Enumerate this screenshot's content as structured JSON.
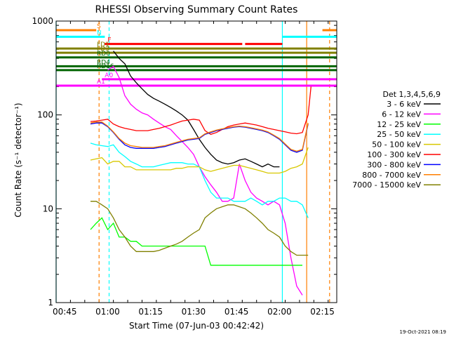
{
  "chart_data": {
    "type": "line",
    "title": "RHESSI Observing Summary Count Rates",
    "xlabel": "Start Time (07-Jun-03 00:42:42)",
    "ylabel": "Count Rate (s⁻¹ detector⁻¹)",
    "yscale": "log",
    "ylim": [
      1,
      1000
    ],
    "xlim_minutes_from_0042": [
      0,
      98
    ],
    "x_ticks": [
      {
        "label": "00:45",
        "minute": 3
      },
      {
        "label": "01:00",
        "minute": 18
      },
      {
        "label": "01:15",
        "minute": 33
      },
      {
        "label": "01:30",
        "minute": 48
      },
      {
        "label": "01:45",
        "minute": 63
      },
      {
        "label": "02:00",
        "minute": 78
      },
      {
        "label": "02:15",
        "minute": 93
      }
    ],
    "y_ticks": [
      {
        "label": "1",
        "value": 1
      },
      {
        "label": "10",
        "value": 10
      },
      {
        "label": "100",
        "value": 100
      },
      {
        "label": "1000",
        "value": 1000
      }
    ],
    "legend_title": "Det 1,3,4,5,6,9",
    "legend_position": "right",
    "series": [
      {
        "name": "3 - 6 keV",
        "color": "#000000",
        "x": [
          0,
          12,
          14,
          16,
          18,
          20,
          22,
          24,
          26,
          28,
          30,
          32,
          34,
          36,
          38,
          40,
          42,
          44,
          46,
          48,
          50,
          52,
          54,
          56,
          58,
          60,
          62,
          64,
          66,
          68,
          70,
          72,
          74,
          76,
          78,
          80,
          82,
          84,
          86,
          88,
          90,
          92
        ],
        "y": [
          null,
          null,
          null,
          null,
          null,
          480,
          400,
          350,
          260,
          220,
          190,
          165,
          150,
          140,
          130,
          120,
          110,
          100,
          88,
          70,
          55,
          45,
          38,
          33,
          31,
          30,
          31,
          33,
          34,
          32,
          30,
          28,
          30,
          28,
          28,
          null,
          null,
          null,
          null,
          null,
          null,
          null
        ]
      },
      {
        "name": "6 - 12 keV",
        "color": "#ff00ff",
        "x": [
          18,
          20,
          22,
          24,
          26,
          28,
          30,
          32,
          34,
          36,
          38,
          40,
          42,
          44,
          46,
          48,
          50,
          52,
          54,
          56,
          58,
          60,
          62,
          64,
          66,
          68,
          70,
          72,
          74,
          76,
          78,
          80,
          82,
          84,
          86,
          88
        ],
        "y": [
          300,
          330,
          250,
          160,
          130,
          115,
          105,
          100,
          90,
          82,
          75,
          70,
          60,
          52,
          45,
          38,
          28,
          22,
          18,
          15,
          12,
          12,
          13,
          30,
          20,
          15,
          13,
          12,
          11,
          12,
          11,
          7,
          3,
          1.5,
          1.2,
          null
        ]
      },
      {
        "name": "12 - 25 keV",
        "color": "#00ff00",
        "x": [
          12,
          14,
          16,
          18,
          20,
          22,
          24,
          26,
          28,
          30,
          32,
          34,
          36,
          38,
          40,
          42,
          44,
          46,
          48,
          50,
          52,
          54,
          56,
          58,
          60,
          62,
          64,
          66,
          68,
          70,
          72,
          74,
          76,
          78,
          80,
          82,
          84,
          86,
          88,
          90,
          92
        ],
        "y": [
          6,
          7,
          8,
          6,
          7,
          5,
          5,
          4.5,
          4.5,
          4,
          4,
          4,
          4,
          4,
          4,
          4,
          4,
          4,
          4,
          4,
          4,
          2.5,
          2.5,
          2.5,
          2.5,
          2.5,
          2.5,
          2.5,
          2.5,
          2.5,
          2.5,
          2.5,
          2.5,
          2.5,
          2.5,
          2.5,
          2.5,
          2.5,
          null,
          null,
          null
        ]
      },
      {
        "name": "25 - 50 keV",
        "color": "#00ffff",
        "x": [
          12,
          14,
          16,
          18,
          20,
          22,
          24,
          26,
          28,
          30,
          32,
          34,
          36,
          38,
          40,
          42,
          44,
          46,
          48,
          50,
          52,
          54,
          56,
          58,
          60,
          62,
          64,
          66,
          68,
          70,
          72,
          74,
          76,
          78,
          80,
          82,
          84,
          86,
          88
        ],
        "y": [
          50,
          48,
          47,
          46,
          48,
          40,
          36,
          32,
          30,
          28,
          28,
          28,
          29,
          30,
          31,
          31,
          31,
          30,
          30,
          28,
          20,
          15,
          13,
          13,
          13,
          12,
          12,
          12,
          13,
          12,
          11,
          12,
          12,
          13,
          13,
          12,
          12,
          11,
          8
        ]
      },
      {
        "name": "50 - 100 keV",
        "color": "#d8c800",
        "x": [
          12,
          14,
          16,
          18,
          20,
          22,
          24,
          26,
          28,
          30,
          32,
          34,
          36,
          38,
          40,
          42,
          44,
          46,
          48,
          50,
          52,
          54,
          56,
          58,
          60,
          62,
          64,
          66,
          68,
          70,
          72,
          74,
          76,
          78,
          80,
          82,
          84,
          86,
          88
        ],
        "y": [
          33,
          34,
          35,
          30,
          32,
          32,
          28,
          28,
          26,
          26,
          26,
          26,
          26,
          26,
          26,
          27,
          27,
          28,
          28,
          28,
          26,
          25,
          26,
          27,
          28,
          29,
          29,
          28,
          27,
          26,
          25,
          24,
          24,
          24,
          25,
          27,
          28,
          30,
          45
        ]
      },
      {
        "name": "100 - 300 keV",
        "color": "#ff0000",
        "x": [
          12,
          14,
          16,
          18,
          20,
          22,
          24,
          26,
          28,
          30,
          32,
          34,
          36,
          38,
          40,
          42,
          44,
          46,
          48,
          50,
          52,
          54,
          56,
          58,
          60,
          62,
          64,
          66,
          68,
          70,
          72,
          74,
          76,
          78,
          80,
          82,
          84,
          86,
          88,
          89
        ],
        "y": [
          85,
          86,
          88,
          90,
          80,
          75,
          72,
          70,
          68,
          68,
          68,
          70,
          72,
          75,
          78,
          82,
          86,
          88,
          90,
          88,
          68,
          62,
          65,
          70,
          75,
          78,
          80,
          82,
          80,
          78,
          75,
          72,
          70,
          68,
          66,
          64,
          63,
          65,
          100,
          200
        ]
      },
      {
        "name": "300 - 800 keV",
        "color": "#0000ff",
        "x": [
          12,
          14,
          16,
          18,
          20,
          22,
          24,
          26,
          28,
          30,
          32,
          34,
          36,
          38,
          40,
          42,
          44,
          46,
          48,
          50,
          52,
          54,
          56,
          58,
          60,
          62,
          64,
          66,
          68,
          70,
          72,
          74,
          76,
          78,
          80,
          82,
          84,
          86,
          88
        ],
        "y": [
          80,
          82,
          82,
          75,
          65,
          55,
          48,
          45,
          44,
          44,
          44,
          44,
          45,
          46,
          48,
          50,
          52,
          54,
          55,
          56,
          62,
          65,
          68,
          70,
          72,
          74,
          75,
          74,
          72,
          70,
          68,
          65,
          60,
          55,
          48,
          42,
          40,
          42,
          80
        ]
      },
      {
        "name": "800 - 7000 keV",
        "color": "#ff7f00",
        "x": [
          12,
          14,
          16,
          18,
          20,
          22,
          24,
          26,
          28,
          30,
          32,
          34,
          36,
          38,
          40,
          42,
          44,
          46,
          48,
          50,
          52,
          54,
          56,
          58,
          60,
          62,
          64,
          66,
          68,
          70,
          72,
          74,
          76,
          78,
          80,
          82,
          84,
          86,
          88
        ],
        "y": [
          82,
          84,
          84,
          76,
          66,
          56,
          50,
          47,
          46,
          45,
          45,
          45,
          46,
          47,
          49,
          51,
          53,
          55,
          56,
          57,
          63,
          66,
          69,
          71,
          73,
          75,
          76,
          75,
          73,
          71,
          69,
          66,
          61,
          56,
          49,
          43,
          41,
          43,
          82
        ]
      },
      {
        "name": "7000 - 15000 keV",
        "color": "#808000",
        "x": [
          12,
          14,
          16,
          18,
          20,
          22,
          24,
          26,
          28,
          30,
          32,
          34,
          36,
          38,
          40,
          42,
          44,
          46,
          48,
          50,
          52,
          54,
          56,
          58,
          60,
          62,
          64,
          66,
          68,
          70,
          72,
          74,
          76,
          78,
          80,
          82,
          84,
          86,
          88
        ],
        "y": [
          12,
          12,
          11,
          10,
          8,
          6,
          5,
          4,
          3.5,
          3.5,
          3.5,
          3.5,
          3.6,
          3.8,
          4,
          4.2,
          4.5,
          5,
          5.5,
          6,
          8,
          9,
          10,
          10.5,
          11,
          11,
          10.5,
          10,
          9,
          8,
          7,
          6,
          5.5,
          5,
          4,
          3.5,
          3.2,
          3.2,
          3.2
        ]
      }
    ],
    "flag_bars": [
      {
        "label": "S",
        "color": "#ff7f00",
        "value": 800,
        "segments": [
          [
            0,
            14
          ],
          [
            93,
            98
          ]
        ]
      },
      {
        "label": "N",
        "color": "#00ffff",
        "value": 680,
        "segments": [
          [
            0,
            17
          ],
          [
            79,
            98
          ]
        ]
      },
      {
        "label": "F",
        "color": "#ff0000",
        "value": 570,
        "segments": [
          [
            17,
            65
          ],
          [
            66,
            79
          ]
        ]
      },
      {
        "label": "FD1",
        "color": "#808000",
        "value": 510,
        "segments": [
          [
            0,
            98
          ]
        ]
      },
      {
        "label": "FD3",
        "color": "#808000",
        "value": 460,
        "segments": [
          [
            0,
            98
          ]
        ]
      },
      {
        "label": "RD0",
        "color": "#006400",
        "value": 410,
        "segments": [
          [
            0,
            98
          ]
        ]
      },
      {
        "label": "RD4",
        "color": "#006400",
        "value": 330,
        "segments": [
          [
            0,
            98
          ]
        ]
      },
      {
        "label": "RD16",
        "color": "#006400",
        "value": 300,
        "segments": [
          [
            0,
            98
          ]
        ]
      },
      {
        "label": "A0",
        "color": "#ff00ff",
        "value": 240,
        "segments": [
          [
            16,
            98
          ]
        ]
      },
      {
        "label": "A1",
        "color": "#ff00ff",
        "value": 205,
        "segments": [
          [
            0,
            98
          ]
        ]
      }
    ],
    "vertical_markers": [
      {
        "minute": 0,
        "color": "#00ffff",
        "style": "solid"
      },
      {
        "minute": 15,
        "color": "#ff7f00",
        "style": "dashed"
      },
      {
        "minute": 18.5,
        "color": "#00ffff",
        "style": "dashed"
      },
      {
        "minute": 79,
        "color": "#00ffff",
        "style": "solid"
      },
      {
        "minute": 87.5,
        "color": "#ff7f00",
        "style": "solid"
      },
      {
        "minute": 95.5,
        "color": "#ff7f00",
        "style": "dashed"
      }
    ],
    "footer_date": "19-Oct-2021 08:19"
  }
}
